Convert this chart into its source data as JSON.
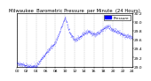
{
  "title": "Milwaukee  Barometric Pressure  per Minute  (24 Hours)",
  "bg_color": "#ffffff",
  "plot_bg_color": "#ffffff",
  "dot_color": "#0000ff",
  "legend_color": "#0000ff",
  "grid_color": "#bbbbbb",
  "border_color": "#000000",
  "ylim": [
    29.0,
    30.2
  ],
  "ytick_labels": [
    "29.0",
    "29.2",
    "29.4",
    "29.6",
    "29.8",
    "30.0",
    "30.2"
  ],
  "ytick_values": [
    29.0,
    29.2,
    29.4,
    29.6,
    29.8,
    30.0,
    30.2
  ],
  "num_points": 1440,
  "keypoints_x": [
    0,
    60,
    120,
    180,
    240,
    360,
    480,
    600,
    660,
    720,
    780,
    840,
    900,
    960,
    1020,
    1080,
    1140,
    1200,
    1260,
    1320,
    1380,
    1439
  ],
  "keypoints_y": [
    29.08,
    29.05,
    29.02,
    29.0,
    29.02,
    29.3,
    29.55,
    30.1,
    29.75,
    29.6,
    29.65,
    29.75,
    29.78,
    29.72,
    29.75,
    29.85,
    29.9,
    29.82,
    29.78,
    29.72,
    29.68,
    29.65
  ],
  "noise_std": 0.025,
  "xlabel_fontsize": 3.2,
  "ylabel_fontsize": 3.2,
  "title_fontsize": 3.8,
  "legend_label": "Pressure"
}
